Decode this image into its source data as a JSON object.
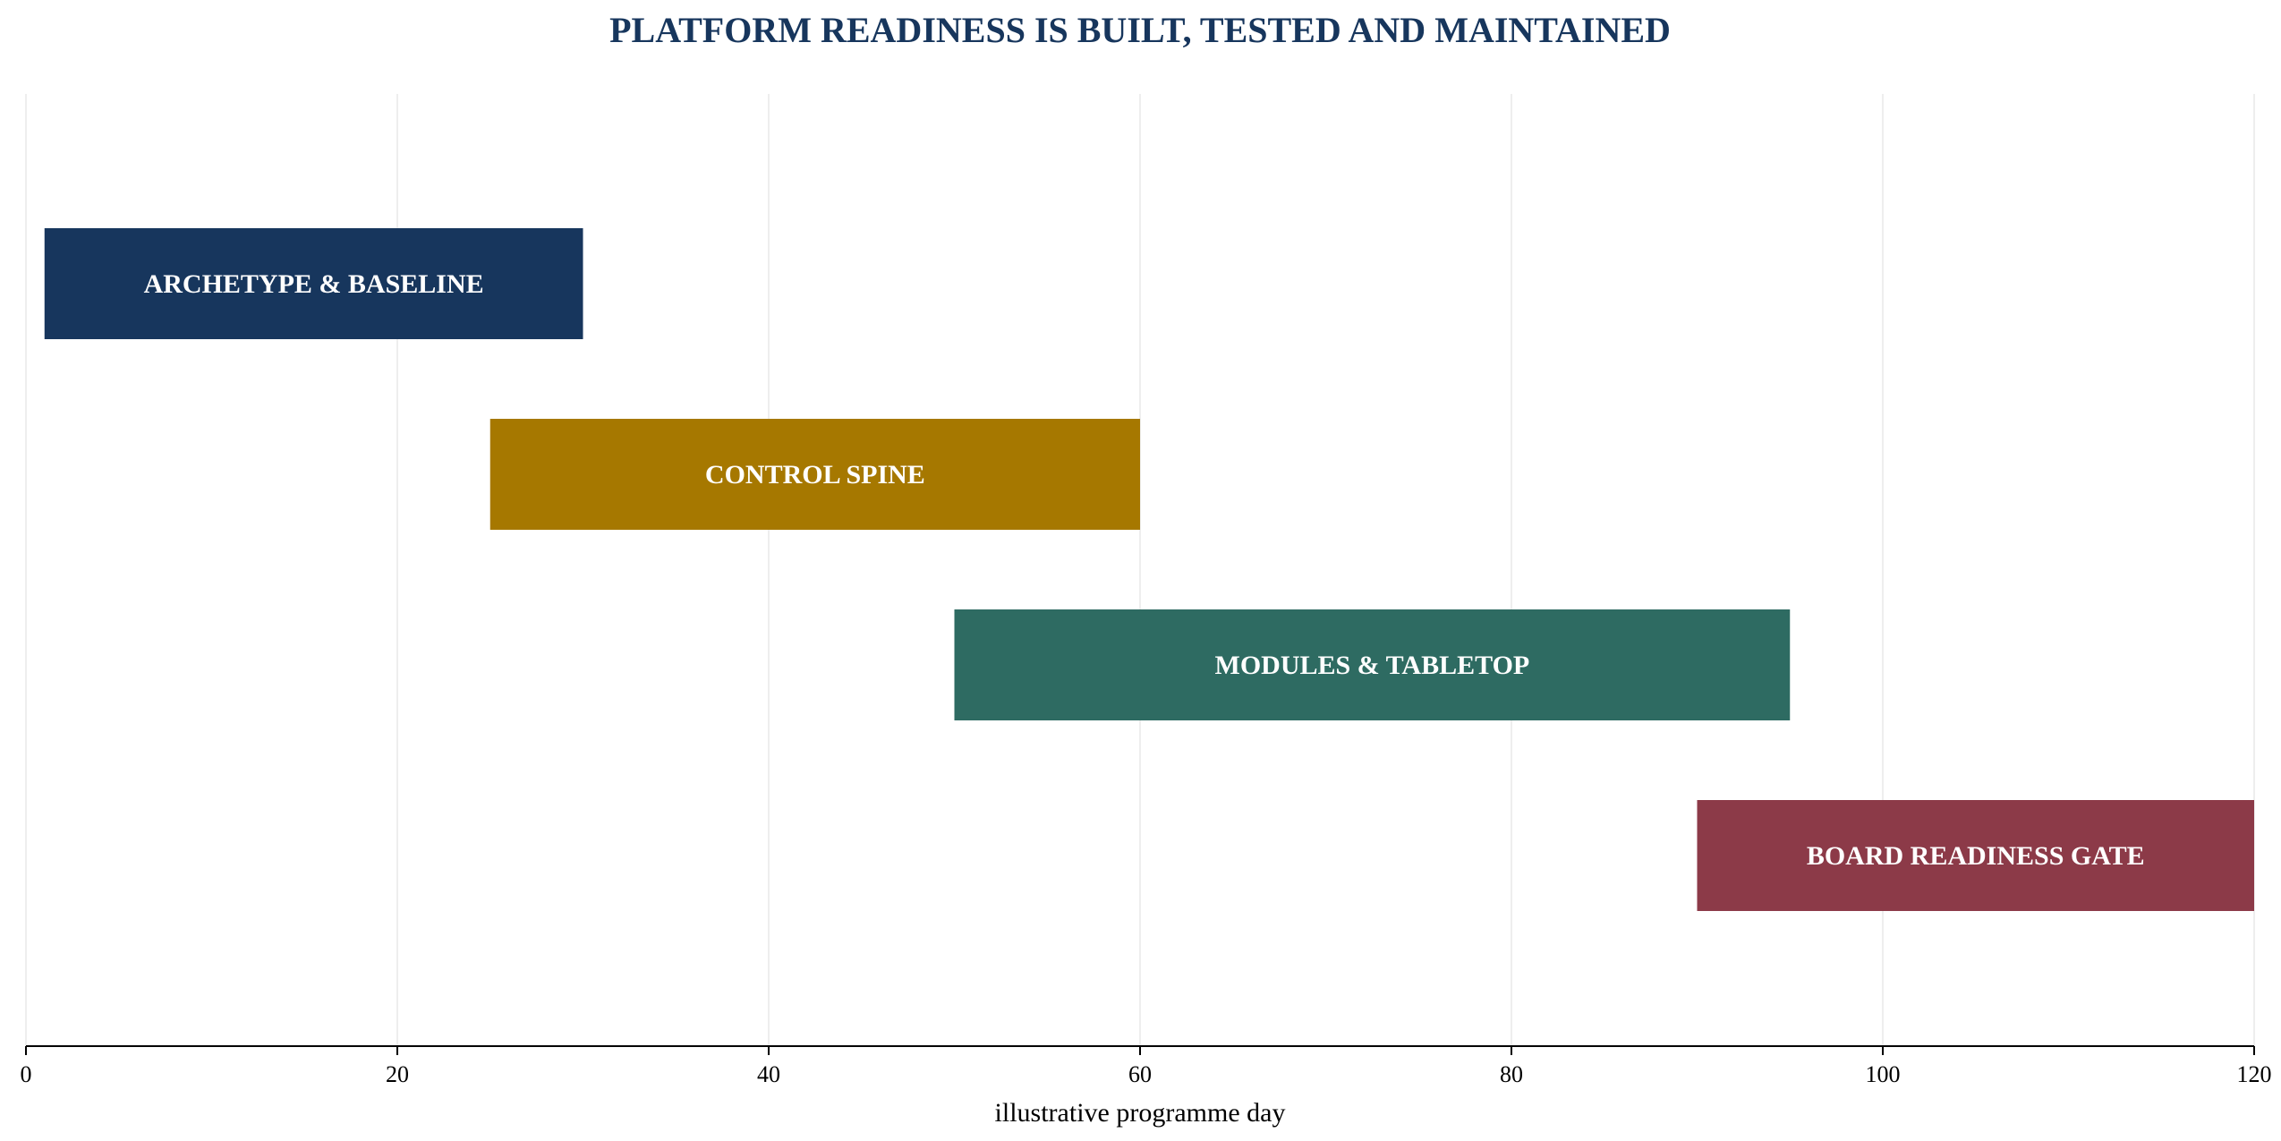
{
  "colors": {
    "title": "#17365d",
    "grid": "#e8e8e8",
    "axis": "#000000"
  },
  "chart_data": {
    "type": "bar",
    "orientation": "horizontal",
    "title": "PLATFORM READINESS IS BUILT, TESTED AND MAINTAINED",
    "xlabel": "illustrative programme day",
    "ylabel": "",
    "xlim": [
      0,
      120
    ],
    "xticks": [
      0,
      20,
      40,
      60,
      80,
      100,
      120
    ],
    "grid": "vertical",
    "tasks": [
      {
        "label": "ARCHETYPE & BASELINE",
        "start": 1,
        "end": 30,
        "color": "#17365d"
      },
      {
        "label": "CONTROL SPINE",
        "start": 25,
        "end": 60,
        "color": "#a67800"
      },
      {
        "label": "MODULES & TABLETOP",
        "start": 50,
        "end": 95,
        "color": "#2e6b62"
      },
      {
        "label": "BOARD READINESS GATE",
        "start": 90,
        "end": 120,
        "color": "#8c3a48"
      }
    ]
  }
}
